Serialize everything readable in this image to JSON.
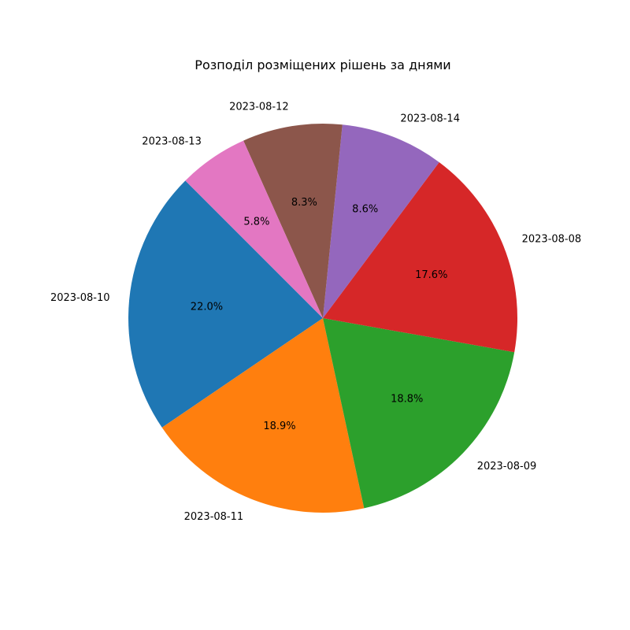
{
  "chart_data": {
    "type": "pie",
    "title": "Розподіл розміщених рішень за днями",
    "start_angle_deg": 135,
    "direction": "counterclockwise",
    "slices": [
      {
        "label": "2023-08-10",
        "value": 22.0,
        "pct_text": "22.0%",
        "color": "#1f77b4"
      },
      {
        "label": "2023-08-11",
        "value": 18.9,
        "pct_text": "18.9%",
        "color": "#ff7f0e"
      },
      {
        "label": "2023-08-09",
        "value": 18.8,
        "pct_text": "18.8%",
        "color": "#2ca02c"
      },
      {
        "label": "2023-08-08",
        "value": 17.6,
        "pct_text": "17.6%",
        "color": "#d62728"
      },
      {
        "label": "2023-08-14",
        "value": 8.6,
        "pct_text": "8.6%",
        "color": "#9467bd"
      },
      {
        "label": "2023-08-12",
        "value": 8.3,
        "pct_text": "8.3%",
        "color": "#8c564b"
      },
      {
        "label": "2023-08-13",
        "value": 5.8,
        "pct_text": "5.8%",
        "color": "#e377c2"
      }
    ]
  }
}
